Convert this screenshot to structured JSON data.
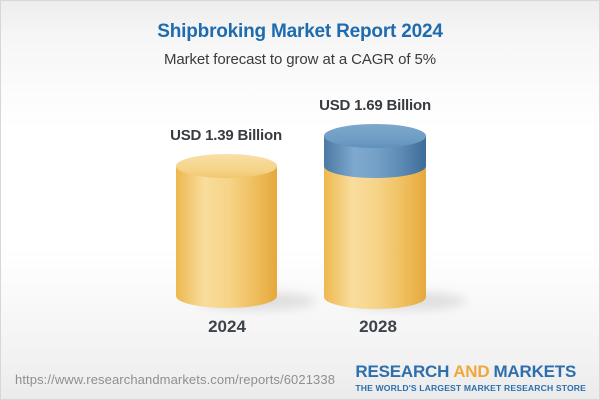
{
  "header": {
    "title": "Shipbroking Market Report 2024",
    "subtitle": "Market forecast to grow at a CAGR of 5%"
  },
  "chart_data": {
    "type": "bar",
    "variant": "3d-cylinder",
    "categories": [
      "2024",
      "2028"
    ],
    "values": [
      1.39,
      1.69
    ],
    "unit": "USD Billion",
    "value_labels": [
      "USD 1.39 Billion",
      "USD 1.69 Billion"
    ],
    "cagr": "5%",
    "series": [
      {
        "name": "base-market-size",
        "values": [
          1.39,
          1.39
        ],
        "color": "#f3c96f"
      },
      {
        "name": "forecast-growth",
        "values": [
          0,
          0.3
        ],
        "color": "#5d8cb8"
      }
    ],
    "legend": "none",
    "grid": false
  },
  "footer": {
    "url": "https://www.researchandmarkets.com/reports/6021338",
    "logo": {
      "word1": "RESEARCH",
      "word2": "AND",
      "word3": "MARKETS",
      "tagline": "THE WORLD'S LARGEST MARKET RESEARCH STORE",
      "blue": "#2d6fad",
      "orange": "#f0a73c"
    }
  },
  "colors": {
    "title_blue": "#1e6bb0",
    "bar_yellow": "#f3c96f",
    "bar_blue": "#5d8cb8",
    "text_dark": "#3b3b3b",
    "url_gray": "#8f8f8f"
  }
}
